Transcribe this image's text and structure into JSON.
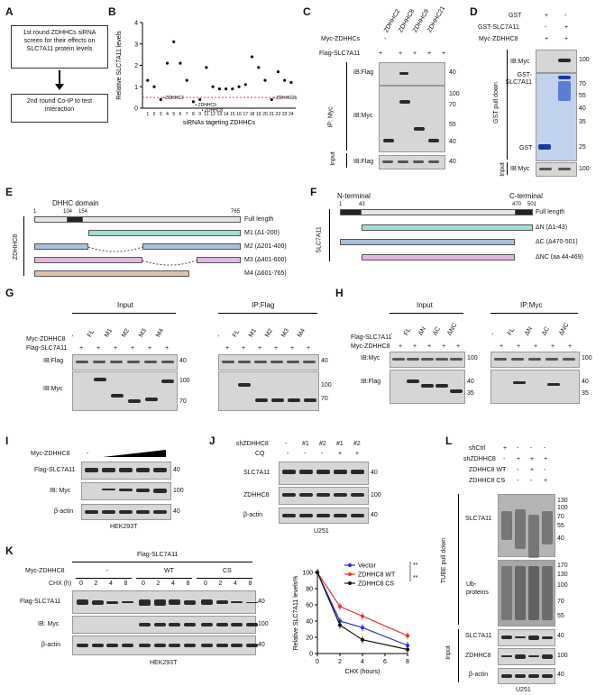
{
  "panels": {
    "A": "A",
    "B": "B",
    "C": "C",
    "D": "D",
    "E": "E",
    "F": "F",
    "G": "G",
    "H": "H",
    "I": "I",
    "J": "J",
    "K": "K",
    "L": "L"
  },
  "panelA": {
    "box1": "1st round ZDHHCs siRNA screen for their effects on SLC7A11 protein levels",
    "box2": "2nd round Co-IP to test interaction"
  },
  "panelB": {
    "ylabel": "Relative SLC7A11 levels",
    "xlabel": "siRNAs tageting ZDHHCs",
    "yticks": [
      "0",
      "1",
      "2",
      "3",
      "4"
    ],
    "xticks": [
      "1",
      "2",
      "3",
      "4",
      "5",
      "6",
      "7",
      "8",
      "9",
      "11",
      "12",
      "13",
      "14",
      "15",
      "16",
      "17",
      "18",
      "19",
      "20",
      "21",
      "22",
      "23",
      "24"
    ],
    "annot": [
      "ZDHHC2",
      "ZDHHC9",
      "ZDHHC8",
      "ZDHHC21"
    ]
  },
  "chart_data": {
    "type": "scatter",
    "title": "",
    "xlabel": "siRNAs tageting ZDHHCs",
    "ylabel": "Relative SLC7A11 levels",
    "ylim": [
      0,
      4
    ],
    "categories": [
      "1",
      "2",
      "3",
      "4",
      "5",
      "6",
      "7",
      "8",
      "9",
      "11",
      "12",
      "13",
      "14",
      "15",
      "16",
      "17",
      "18",
      "19",
      "20",
      "21",
      "22",
      "23",
      "24"
    ],
    "values": [
      1.3,
      1.0,
      0.4,
      2.1,
      3.1,
      2.1,
      1.3,
      0.3,
      0.4,
      1.9,
      1.0,
      0.9,
      0.9,
      0.9,
      1.0,
      1.1,
      2.4,
      1.9,
      1.3,
      0.4,
      1.7,
      1.3,
      1.2
    ],
    "threshold": 0.5,
    "annotations": [
      {
        "label": "ZDHHC2",
        "x": "3"
      },
      {
        "label": "ZDHHC9",
        "x": "8"
      },
      {
        "label": "ZDHHC8",
        "x": "9"
      },
      {
        "label": "ZDHHC21",
        "x": "21"
      }
    ]
  },
  "panelC": {
    "row1": "Myc-ZDHHCs",
    "row2": "Flag-SLC7A11",
    "cols": [
      "-",
      "ZDHHC2",
      "ZDHHC8",
      "ZDHHC9",
      "ZDHHC21"
    ],
    "signs": [
      "+",
      "+",
      "+",
      "+",
      "+"
    ],
    "ib_flag": "IB:Flag",
    "ib_myc": "IB:Myc",
    "ip": "IP: Myc",
    "input": "Input",
    "input_ib": "IB:Flag",
    "mw": [
      "40",
      "100",
      "70",
      "55",
      "40",
      "40"
    ]
  },
  "panelD": {
    "rows": [
      "GST",
      "GST-SLC7A11",
      "Myc-ZDHHC8"
    ],
    "signs": [
      [
        "+",
        "-"
      ],
      [
        "-",
        "+"
      ],
      [
        "+",
        "+"
      ]
    ],
    "ib_myc": "IB:Myc",
    "gst_slc": "GST-SLC7A11",
    "gst": "GST",
    "side": "GST pull down",
    "input": "Input",
    "input_ib": "IB:Myc",
    "mw": [
      "100",
      "70",
      "55",
      "40",
      "35",
      "25",
      "100"
    ]
  },
  "panelE": {
    "domain": "DHHC domain",
    "ticks": [
      "1",
      "104",
      "154",
      "765"
    ],
    "side": "ZDHHC8",
    "constructs": [
      "Full length",
      "M1 (Δ1-200)",
      "M2 (Δ201-400)",
      "M3 (Δ401-600)",
      "M4 (Δ601-765)"
    ]
  },
  "panelF": {
    "nterm": "N-terminal",
    "cterm": "C-terminal",
    "ticks": [
      "1",
      "43",
      "470",
      "501"
    ],
    "side": "SLC7A11",
    "constructs": [
      "Full length",
      "ΔN (Δ1-43)",
      "ΔC (Δ470-501)",
      "ΔNC (aa 44-469)"
    ]
  },
  "panelG": {
    "input": "Input",
    "ip": "IP:Flag",
    "row1": "Myc-ZDHHC8",
    "row2": "Flag-SLC7A11",
    "cols": [
      "-",
      "FL",
      "M1",
      "M2",
      "M3",
      "M4"
    ],
    "signs": [
      "+",
      "+",
      "+",
      "+",
      "+",
      "+"
    ],
    "ib_flag": "IB:Flag",
    "ib_myc": "IB:Myc",
    "mw": [
      "40",
      "100",
      "70",
      "40",
      "100",
      "70"
    ]
  },
  "panelH": {
    "input": "Input",
    "ip": "IP:Myc",
    "row1": "Flag-SLC7A11",
    "row2": "Myc-ZDHHC8",
    "cols": [
      "-",
      "FL",
      "ΔN",
      "ΔC",
      "ΔNC"
    ],
    "signs": [
      "+",
      "+",
      "+",
      "+",
      "+"
    ],
    "ib_myc": "IB:Myc",
    "ib_flag": "IB:Flag",
    "mw": [
      "100",
      "40",
      "35",
      "100",
      "40",
      "35"
    ]
  },
  "panelI": {
    "row1": "Myc-ZDHHC8",
    "rows": [
      "Flag-SLC7A11",
      "IB: Myc",
      "β-actin"
    ],
    "mw": [
      "40",
      "100",
      "40"
    ],
    "cell": "HEK293T"
  },
  "panelJ": {
    "row1": "shZDHHC8",
    "row2": "CQ",
    "cols": [
      "-",
      "#1",
      "#2",
      "#1",
      "#2"
    ],
    "cq": [
      "-",
      "-",
      "-",
      "+",
      "+"
    ],
    "rows": [
      "SLC7A11",
      "ZDHHC8",
      "β-actin"
    ],
    "mw": [
      "40",
      "100",
      "40"
    ],
    "cell": "U251"
  },
  "panelK": {
    "title": "Flag-SLC7A11",
    "row1": "Myc-ZDHHC8",
    "groups": [
      "-",
      "WT",
      "CS"
    ],
    "row2": "CHX (h)",
    "times": [
      "0",
      "2",
      "4",
      "8",
      "0",
      "2",
      "4",
      "8",
      "0",
      "2",
      "4",
      "8"
    ],
    "rows": [
      "Flag-SLC7A11",
      "IB: Myc",
      "β-actin"
    ],
    "mw": [
      "40",
      "100",
      "40"
    ],
    "cell": "HEK293T"
  },
  "panelKchart": {
    "ylabel": "Relative SLC7A11 levels%",
    "xlabel": "CHX (hours)",
    "yticks": [
      "0",
      "20",
      "40",
      "60",
      "80",
      "100"
    ],
    "xticks": [
      "0",
      "2",
      "4",
      "6",
      "8"
    ],
    "legend": [
      "Vector",
      "ZDHHC8 WT",
      "ZDHHC8 CS"
    ],
    "sig": [
      "**",
      "**"
    ],
    "series": [
      {
        "name": "Vector",
        "color": "#2233dd",
        "x": [
          0,
          2,
          4,
          8
        ],
        "y": [
          100,
          40,
          32,
          10
        ]
      },
      {
        "name": "ZDHHC8 WT",
        "color": "#e8322a",
        "x": [
          0,
          2,
          4,
          8
        ],
        "y": [
          100,
          58,
          46,
          22
        ]
      },
      {
        "name": "ZDHHC8 CS",
        "color": "#111111",
        "x": [
          0,
          2,
          4,
          8
        ],
        "y": [
          100,
          35,
          17,
          5
        ]
      }
    ]
  },
  "panelL": {
    "rows": [
      "shCtrl",
      "shZDHHC8",
      "ZDHHC8 WT",
      "ZDHHC8 CS"
    ],
    "signs": [
      [
        "+",
        "-",
        "-",
        "-"
      ],
      [
        "-",
        "+",
        "+",
        "+"
      ],
      [
        "-",
        "-",
        "+",
        "-"
      ],
      [
        "-",
        "-",
        "-",
        "+"
      ]
    ],
    "side": "TUBE pull down",
    "slc": "SLC7A11",
    "ub": "Ub-proteins",
    "input": "Input",
    "inrows": [
      "SLC7A11",
      "ZDHHC8",
      "β-actin"
    ],
    "mw1": [
      "130",
      "100",
      "70",
      "55",
      "40"
    ],
    "mw2": [
      "170",
      "130",
      "100",
      "70",
      "55"
    ],
    "mw3": [
      "40",
      "100",
      "40"
    ],
    "cell": "U251"
  }
}
